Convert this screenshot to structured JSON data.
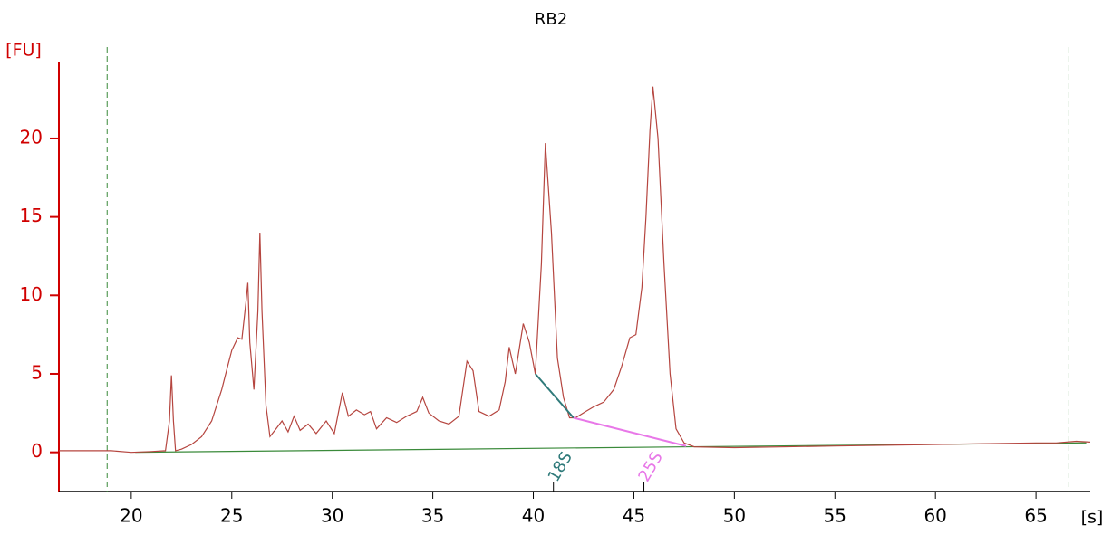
{
  "chart_data": {
    "type": "line",
    "title": "RB2",
    "x_label": "[s]",
    "y_label": "[FU]",
    "x": [
      16.4,
      18,
      19,
      20,
      21,
      21.7,
      21.9,
      22.0,
      22.1,
      22.2,
      22.5,
      23,
      23.5,
      24,
      24.5,
      24.8,
      25,
      25.3,
      25.5,
      25.7,
      25.8,
      25.9,
      26.1,
      26.3,
      26.4,
      26.5,
      26.7,
      26.9,
      27.2,
      27.5,
      27.8,
      28.1,
      28.4,
      28.8,
      29.2,
      29.7,
      30.1,
      30.5,
      30.8,
      31.2,
      31.6,
      31.9,
      32.2,
      32.7,
      33.2,
      33.7,
      34.2,
      34.5,
      34.8,
      35.3,
      35.8,
      36.3,
      36.7,
      37.0,
      37.3,
      37.8,
      38.3,
      38.6,
      38.8,
      39.1,
      39.5,
      39.8,
      40.1,
      40.4,
      40.6,
      40.9,
      41.2,
      41.5,
      41.8,
      42.1,
      42.6,
      43.0,
      43.5,
      44.0,
      44.4,
      44.8,
      45.1,
      45.4,
      45.6,
      45.8,
      45.95,
      46.2,
      46.5,
      46.8,
      47.1,
      47.5,
      48,
      50,
      55,
      60,
      65,
      66,
      67,
      67.7
    ],
    "series": [
      {
        "color": "#b5453f",
        "values": [
          0.1,
          0.1,
          0.1,
          0.0,
          0.05,
          0.1,
          2.0,
          4.9,
          2.0,
          0.1,
          0.2,
          0.5,
          1.0,
          2.0,
          4.0,
          5.5,
          6.5,
          7.3,
          7.2,
          9.5,
          10.8,
          7.0,
          4.0,
          9.0,
          14.0,
          9.0,
          3.0,
          1.0,
          1.5,
          2.0,
          1.3,
          2.3,
          1.4,
          1.8,
          1.2,
          2.0,
          1.2,
          3.8,
          2.3,
          2.7,
          2.4,
          2.6,
          1.5,
          2.2,
          1.9,
          2.3,
          2.6,
          3.5,
          2.5,
          2.0,
          1.8,
          2.3,
          5.8,
          5.2,
          2.6,
          2.3,
          2.7,
          4.5,
          6.7,
          5.0,
          8.2,
          7.0,
          5.0,
          12.0,
          19.7,
          14.0,
          6.0,
          3.5,
          2.2,
          2.2,
          2.6,
          2.9,
          3.2,
          4.0,
          5.5,
          7.3,
          7.5,
          10.5,
          15.0,
          20.5,
          23.3,
          20.0,
          12.0,
          5.0,
          1.5,
          0.6,
          0.35,
          0.3,
          0.4,
          0.5,
          0.6,
          0.6,
          0.7,
          0.65
        ]
      }
    ],
    "baseline": {
      "color": "#3a8a3a",
      "x": [
        20.2,
        67.5
      ],
      "y": [
        0,
        0.6
      ]
    },
    "markers_x": [
      18.8,
      66.6
    ],
    "marker_color": "#3a8a3a",
    "annotations": [
      {
        "label": "18S",
        "color": "#2f7a7a",
        "x": [
          40.1,
          42.0
        ],
        "y": [
          5.0,
          2.2
        ],
        "label_x": 41.0
      },
      {
        "label": "25S",
        "color": "#e878e8",
        "x": [
          42.0,
          47.6
        ],
        "y": [
          2.2,
          0.4
        ],
        "label_x": 45.5
      }
    ],
    "xlim": [
      16.4,
      67.7
    ],
    "ylim": [
      -2.5,
      24.9
    ],
    "xticks": [
      20,
      25,
      30,
      35,
      40,
      45,
      50,
      55,
      60,
      65
    ],
    "yticks": [
      0,
      5,
      10,
      15,
      20
    ],
    "axis_color": "#d00000"
  }
}
